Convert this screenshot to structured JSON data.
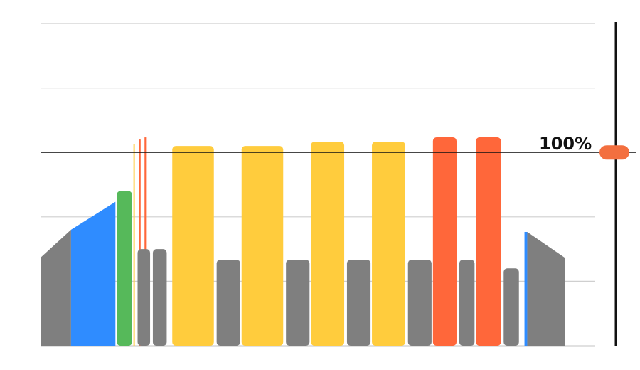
{
  "colors": {
    "gray": "#7f7f7f",
    "blue": "#2f8cff",
    "green": "#56b95a",
    "yellow": "#ffcc3d",
    "orange": "#ff673a",
    "grid": "#cfcfcf",
    "reference": "#111111",
    "handle": "#f36f3f"
  },
  "chart_data": {
    "type": "bar",
    "title": "",
    "xlabel": "",
    "ylabel": "",
    "ylim": [
      0,
      150
    ],
    "grid": true,
    "gridlines": [
      0,
      30,
      60,
      90,
      120,
      150
    ],
    "reference_line": {
      "value": 90,
      "label": "100%"
    },
    "areas": [
      {
        "color": "gray",
        "points": [
          [
            0,
            41
          ],
          [
            1.1,
            54
          ],
          [
            1.1,
            0
          ],
          [
            0,
            0
          ]
        ]
      },
      {
        "color": "blue",
        "points": [
          [
            1.1,
            54
          ],
          [
            2.7,
            67
          ],
          [
            2.7,
            0
          ],
          [
            1.1,
            0
          ]
        ]
      },
      {
        "color": "blue",
        "points": [
          [
            17.45,
            53
          ],
          [
            17.55,
            53
          ],
          [
            17.55,
            0
          ],
          [
            17.45,
            0
          ]
        ]
      },
      {
        "color": "gray",
        "points": [
          [
            17.55,
            53
          ],
          [
            18.9,
            41
          ],
          [
            18.9,
            0
          ],
          [
            17.55,
            0
          ]
        ]
      }
    ],
    "bars": [
      {
        "color": "green",
        "start": 2.75,
        "width": 0.55,
        "value": 72
      },
      {
        "color": "yellow",
        "start": 3.35,
        "width": 0.05,
        "value": 94
      },
      {
        "color": "orange",
        "start": 3.55,
        "width": 0.06,
        "value": 96
      },
      {
        "color": "orange",
        "start": 3.75,
        "width": 0.08,
        "value": 97
      },
      {
        "color": "gray",
        "start": 3.5,
        "width": 0.45,
        "value": 45
      },
      {
        "color": "gray",
        "start": 4.05,
        "width": 0.5,
        "value": 45
      },
      {
        "color": "yellow",
        "start": 4.75,
        "width": 1.5,
        "value": 93
      },
      {
        "color": "gray",
        "start": 6.35,
        "width": 0.85,
        "value": 40
      },
      {
        "color": "yellow",
        "start": 7.25,
        "width": 1.5,
        "value": 93
      },
      {
        "color": "gray",
        "start": 8.85,
        "width": 0.85,
        "value": 40
      },
      {
        "color": "yellow",
        "start": 9.75,
        "width": 1.2,
        "value": 95
      },
      {
        "color": "gray",
        "start": 11.05,
        "width": 0.85,
        "value": 40
      },
      {
        "color": "yellow",
        "start": 11.95,
        "width": 1.2,
        "value": 95
      },
      {
        "color": "gray",
        "start": 13.25,
        "width": 0.85,
        "value": 40
      },
      {
        "color": "orange",
        "start": 14.15,
        "width": 0.85,
        "value": 97
      },
      {
        "color": "gray",
        "start": 15.1,
        "width": 0.55,
        "value": 40
      },
      {
        "color": "orange",
        "start": 15.7,
        "width": 0.9,
        "value": 97
      },
      {
        "color": "gray",
        "start": 16.7,
        "width": 0.55,
        "value": 36
      }
    ]
  }
}
